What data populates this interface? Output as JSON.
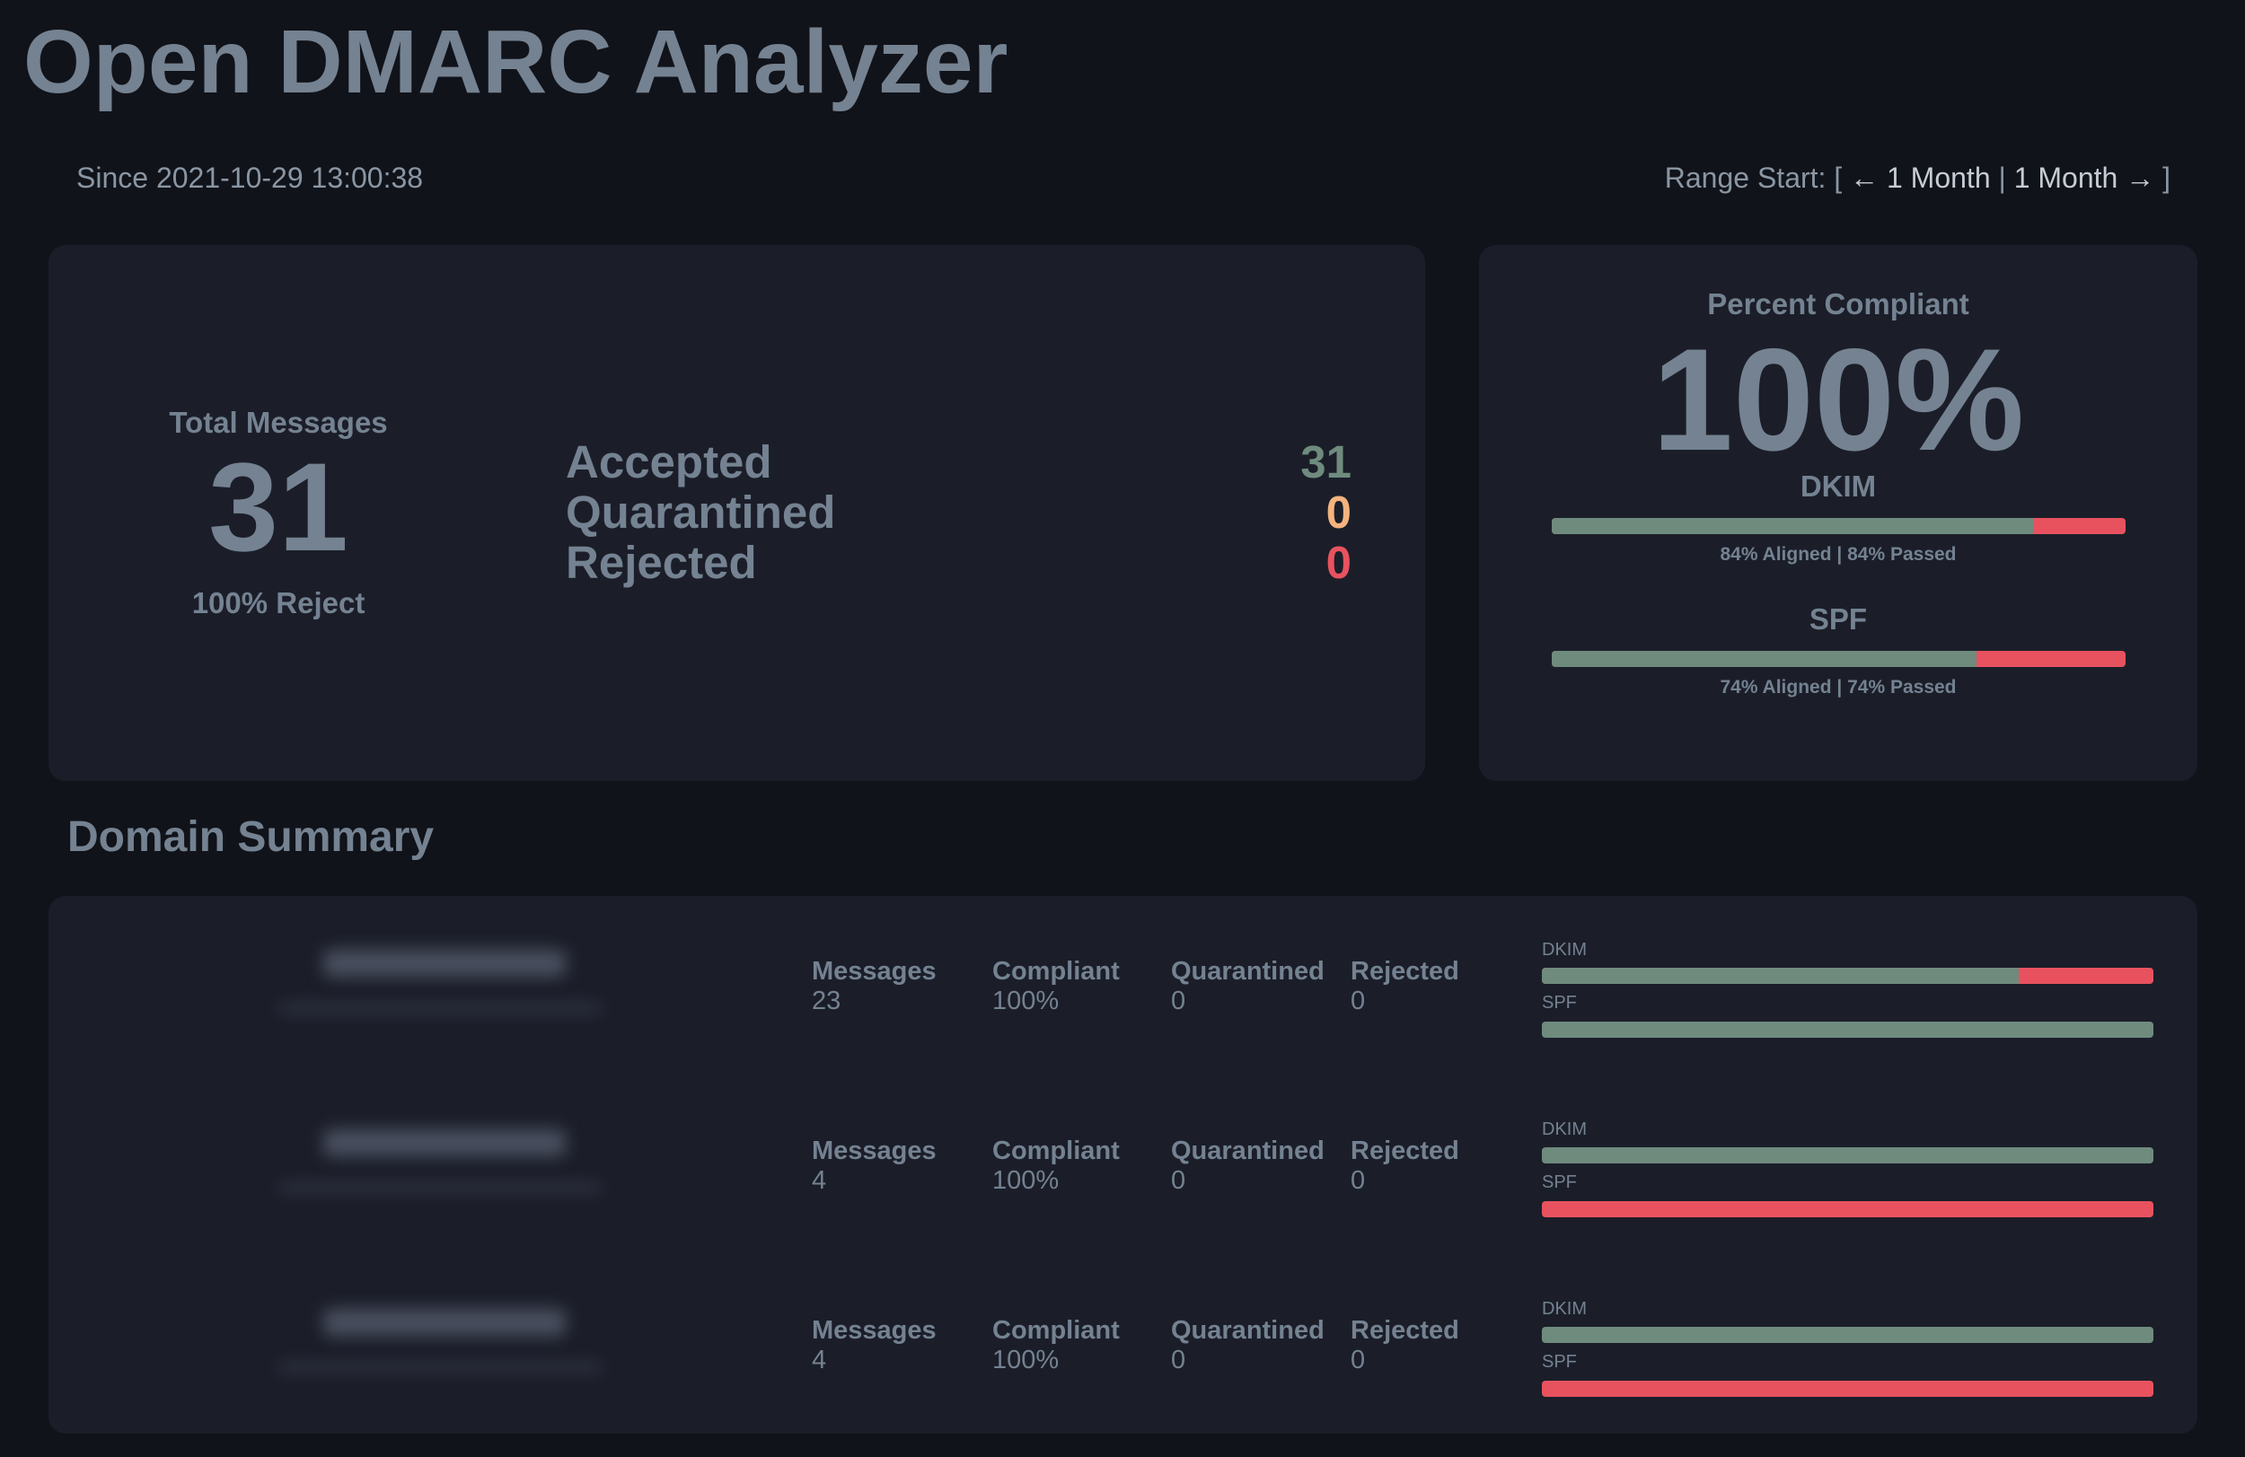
{
  "header": {
    "title": "Open DMARC Analyzer",
    "since": "Since 2021-10-29 13:00:38",
    "range": {
      "prefix": "Range Start: [",
      "back": "← 1 Month",
      "sep": " | ",
      "forward": "1 Month →",
      "suffix": " ]"
    }
  },
  "totals": {
    "label": "Total Messages",
    "count": "31",
    "policy": "100% Reject",
    "dispositions": [
      {
        "label": "Accepted",
        "value": "31",
        "color": "#6f8b7e"
      },
      {
        "label": "Quarantined",
        "value": "0",
        "color": "#f4b27e"
      },
      {
        "label": "Rejected",
        "value": "0",
        "color": "#e8525f"
      }
    ]
  },
  "compliance": {
    "label": "Percent Compliant",
    "value": "100%",
    "dkim": {
      "label": "DKIM",
      "aligned_pct": 84,
      "caption": "84% Aligned | 84% Passed"
    },
    "spf": {
      "label": "SPF",
      "aligned_pct": 74,
      "caption": "74% Aligned | 74% Passed"
    }
  },
  "domain_summary": {
    "title": "Domain Summary",
    "columns": [
      "Messages",
      "Compliant",
      "Quarantined",
      "Rejected"
    ],
    "rows": [
      {
        "messages": "23",
        "compliant": "100%",
        "quarantined": "0",
        "rejected": "0",
        "dkim_label": "DKIM",
        "dkim_pct": 78,
        "spf_label": "SPF",
        "spf_pct": 100
      },
      {
        "messages": "4",
        "compliant": "100%",
        "quarantined": "0",
        "rejected": "0",
        "dkim_label": "DKIM",
        "dkim_pct": 100,
        "spf_label": "SPF",
        "spf_pct": 0
      },
      {
        "messages": "4",
        "compliant": "100%",
        "quarantined": "0",
        "rejected": "0",
        "dkim_label": "DKIM",
        "dkim_pct": 100,
        "spf_label": "SPF",
        "spf_pct": 0
      }
    ]
  },
  "colors": {
    "pass": "#6f8b7e",
    "fail": "#e8525f",
    "warn": "#f4b27e"
  }
}
